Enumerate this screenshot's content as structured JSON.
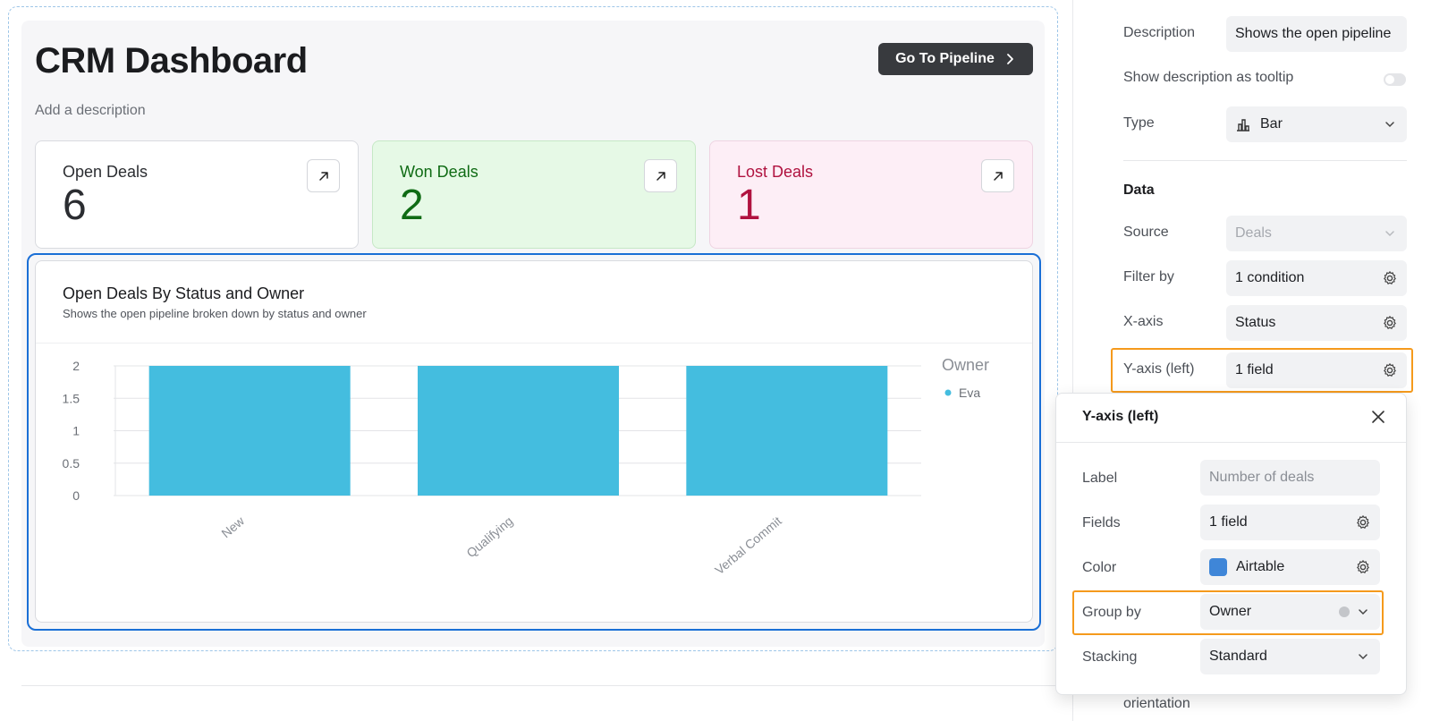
{
  "dashboard": {
    "title": "CRM Dashboard",
    "description_placeholder": "Add a description",
    "pipeline_button": "Go To Pipeline",
    "kpis": [
      {
        "label": "Open Deals",
        "value": "6"
      },
      {
        "label": "Won Deals",
        "value": "2"
      },
      {
        "label": "Lost Deals",
        "value": "1"
      }
    ],
    "chart": {
      "title": "Open Deals By Status and Owner",
      "subtitle": "Shows the open pipeline broken down by status and owner"
    }
  },
  "chart_data": {
    "type": "bar",
    "categories": [
      "New",
      "Qualifying",
      "Verbal Commit"
    ],
    "series": [
      {
        "name": "Eva",
        "values": [
          2,
          2,
          2
        ],
        "color": "#44bddf"
      }
    ],
    "ylim": [
      0,
      2
    ],
    "yticks": [
      "2",
      "1.5",
      "1",
      "0.5",
      "0"
    ],
    "legend_title": "Owner",
    "legend_position": "right",
    "grid": true
  },
  "panel": {
    "description_label": "Description",
    "description_value": "Shows the open pipeline",
    "tooltip_label": "Show description as tooltip",
    "type_label": "Type",
    "type_value": "Bar",
    "data_heading": "Data",
    "source_label": "Source",
    "source_value": "Deals",
    "filter_label": "Filter by",
    "filter_value": "1 condition",
    "xaxis_label": "X-axis",
    "xaxis_value": "Status",
    "yaxis_label": "Y-axis (left)",
    "yaxis_value": "1 field",
    "orientation_label": "orientation"
  },
  "popover": {
    "title": "Y-axis (left)",
    "label_label": "Label",
    "label_placeholder": "Number of deals",
    "fields_label": "Fields",
    "fields_value": "1 field",
    "color_label": "Color",
    "color_value": "Airtable",
    "color_swatch": "#3f86d8",
    "groupby_label": "Group by",
    "groupby_value": "Owner",
    "stacking_label": "Stacking",
    "stacking_value": "Standard"
  }
}
